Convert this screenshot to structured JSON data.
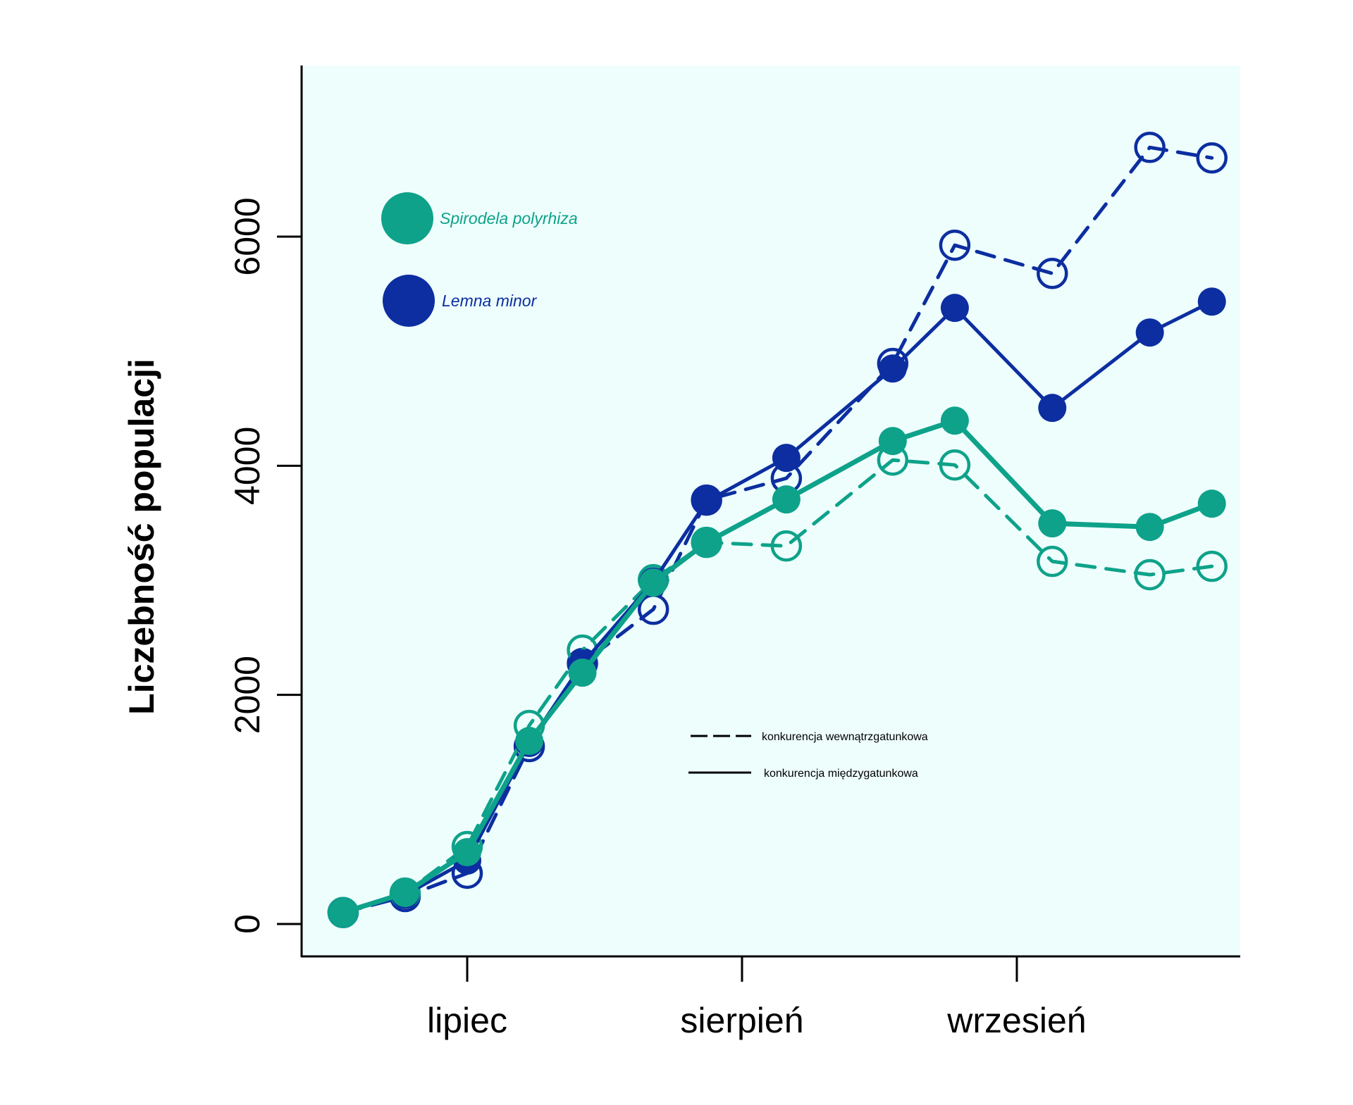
{
  "chart_data": {
    "type": "line",
    "title": "",
    "xlabel": "",
    "ylabel": "Liczebność populacji",
    "x_unit": "days since 1 July",
    "xlim": [
      -18,
      88
    ],
    "ylim": [
      -300,
      7450
    ],
    "grid": false,
    "x_ticks": [
      {
        "value": 0,
        "label": "lipiec"
      },
      {
        "value": 31,
        "label": "sierpień"
      },
      {
        "value": 62,
        "label": "wrzesień"
      }
    ],
    "y_ticks": [
      {
        "value": 0,
        "label": "0"
      },
      {
        "value": 2000,
        "label": "2000"
      },
      {
        "value": 4000,
        "label": "4000"
      },
      {
        "value": 6000,
        "label": "6000"
      }
    ],
    "x": [
      -14,
      -7,
      0,
      7,
      13,
      21,
      27,
      36,
      48,
      55,
      66,
      77,
      84
    ],
    "series": [
      {
        "name": "Lemna minor — konkurencja wewnątrzgatunkowa",
        "species": "lemna",
        "style": "dashed",
        "marker": "open",
        "values": [
          100,
          240,
          443,
          1549,
          2274,
          2747,
          3700,
          3891,
          4893,
          5925,
          5679,
          6779,
          6687
        ]
      },
      {
        "name": "Lemna minor — konkurencja międzygatunkowa",
        "species": "lemna",
        "style": "solid",
        "marker": "filled",
        "values": [
          100,
          255,
          553,
          1580,
          2274,
          2990,
          3688,
          4069,
          4849,
          5378,
          4505,
          5163,
          5433
        ]
      },
      {
        "name": "Spirodela polyrhiza — konkurencja wewnątrzgatunkowa",
        "species": "spirodela",
        "style": "dashed",
        "marker": "open",
        "values": [
          100,
          270,
          676,
          1733,
          2391,
          3005,
          3331,
          3300,
          4050,
          4007,
          3165,
          3049,
          3122
        ]
      },
      {
        "name": "Spirodela polyrhiza — konkurencja międzygatunkowa",
        "species": "spirodela",
        "style": "solid",
        "marker": "filled",
        "values": [
          100,
          270,
          627,
          1598,
          2194,
          2981,
          3331,
          3706,
          4216,
          4394,
          3497,
          3466,
          3669
        ]
      }
    ],
    "legend": {
      "placement": "top-left",
      "species": [
        {
          "key": "spirodela",
          "label": "Spirodela polyrhiza"
        },
        {
          "key": "lemna",
          "label": "Lemna minor"
        }
      ],
      "line_styles": [
        {
          "style": "dashed",
          "label": "konkurencja wewnątrzgatunkowa"
        },
        {
          "style": "solid",
          "label": "konkurencja międzygatunkowa"
        }
      ]
    },
    "colors": {
      "spirodela": "#0ea28a",
      "lemna": "#0c2ea0",
      "plot_background": "#eefefd"
    }
  }
}
